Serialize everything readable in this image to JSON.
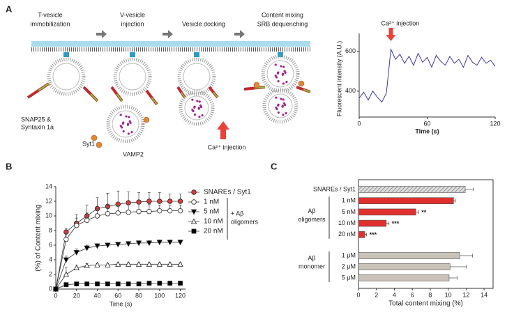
{
  "panels": [
    "A",
    "B",
    "C"
  ],
  "diagram": {
    "steps": [
      [
        "T-vesicle",
        "immobilization"
      ],
      [
        "V-vesicle",
        "injection"
      ],
      [
        "Vesicle docking"
      ],
      [
        "Content mixing",
        "SRB dequenching"
      ]
    ],
    "t_snare_label": [
      "SNAP25 &",
      "Syntaxin 1a"
    ],
    "syt_label": "Syt1",
    "vamp_label": "VAMP2",
    "ca_label": "Ca²⁺ injection"
  },
  "chart_data": [
    {
      "type": "line",
      "annotation": "Ca²⁺ injection",
      "xlabel": "Time (s)",
      "ylabel": "Fluorescent intensity (A.U.)",
      "x": [
        0,
        4,
        8,
        12,
        16,
        20,
        24,
        28,
        32,
        36,
        40,
        44,
        48,
        52,
        56,
        60,
        64,
        68,
        72,
        76,
        80,
        84,
        88,
        92,
        96,
        100,
        104,
        108,
        112,
        116,
        120
      ],
      "values": [
        365,
        395,
        355,
        400,
        370,
        345,
        390,
        610,
        560,
        585,
        540,
        575,
        530,
        590,
        545,
        570,
        520,
        580,
        550,
        530,
        575,
        540,
        560,
        520,
        580,
        545,
        530,
        570,
        540,
        555,
        525
      ],
      "color": "#3a3aa0",
      "annotation_x": 28,
      "xlim": [
        0,
        120
      ],
      "xticks": [
        0,
        60,
        120
      ],
      "ylim": [
        270,
        690
      ],
      "yticks": [
        400,
        600
      ]
    },
    {
      "type": "line_markers",
      "xlabel": "Time (s)",
      "ylabel": "(%) of Content mixing",
      "group_label": [
        "+ Aβ",
        "oligomers"
      ],
      "x": [
        0,
        10,
        20,
        30,
        40,
        50,
        60,
        70,
        80,
        90,
        100,
        110,
        120
      ],
      "series": [
        {
          "name": "SNAREs / Syt1",
          "marker": "circle",
          "color": "#e03a3a",
          "values": [
            0,
            7.8,
            9.0,
            10.0,
            11.0,
            11.3,
            11.6,
            11.8,
            11.9,
            12.0,
            12.0,
            12.0,
            12.0
          ],
          "errors": [
            0,
            0.5,
            1.2,
            1.5,
            1.5,
            1.8,
            1.8,
            1.5,
            1.3,
            1.2,
            1.2,
            1.0,
            1.0
          ]
        },
        {
          "name": "1 nM",
          "marker": "circle",
          "color": "#ffffff",
          "values": [
            0,
            6.8,
            8.7,
            9.4,
            10.0,
            10.3,
            10.4,
            10.5,
            10.6,
            10.6,
            10.7,
            10.7,
            10.7
          ],
          "errors": [
            0,
            0.8,
            1.0,
            1.0,
            1.0,
            1.2,
            1.0,
            1.0,
            1.0,
            1.0,
            0.8,
            0.8,
            0.8
          ]
        },
        {
          "name": "5 nM",
          "marker": "triangle-down",
          "color": "#000000",
          "values": [
            0,
            4.0,
            5.0,
            5.6,
            5.9,
            6.0,
            6.1,
            6.2,
            6.3,
            6.3,
            6.4,
            6.4,
            6.4
          ],
          "errors": [
            0,
            0.5,
            0.5,
            0.4,
            0.3,
            0.3,
            0.3,
            0.3,
            0.3,
            0.3,
            0.3,
            0.3,
            0.3
          ]
        },
        {
          "name": "10 nM",
          "marker": "triangle-up",
          "color": "#ffffff",
          "values": [
            0,
            2.0,
            2.9,
            3.2,
            3.3,
            3.3,
            3.4,
            3.4,
            3.4,
            3.4,
            3.4,
            3.4,
            3.4
          ],
          "errors": [
            0,
            1.0,
            0.4,
            0.3,
            0.2,
            0.2,
            0.2,
            0.2,
            0.2,
            0.2,
            0.2,
            0.2,
            0.2
          ]
        },
        {
          "name": "20 nM",
          "marker": "square",
          "color": "#000000",
          "values": [
            0,
            0.6,
            0.7,
            0.7,
            0.7,
            0.7,
            0.7,
            0.7,
            0.7,
            0.8,
            0.8,
            0.8,
            0.8
          ],
          "errors": [
            0,
            0.2,
            0.1,
            0.1,
            0.1,
            0.1,
            0.1,
            0.1,
            0.1,
            0.1,
            0.1,
            0.1,
            0.1
          ]
        }
      ],
      "xlim": [
        0,
        125
      ],
      "xticks": [
        0,
        20,
        40,
        60,
        80,
        100,
        120
      ],
      "ylim": [
        0,
        14
      ],
      "yticks": [
        0,
        2,
        4,
        6,
        8,
        10,
        12,
        14
      ]
    },
    {
      "type": "hbar",
      "xlabel": "Total content mixing (%)",
      "categories": [
        "SNAREs / Syt1",
        "1 nM",
        "5 nM",
        "10 nM",
        "20 nM",
        "1 μM",
        "2 μM",
        "5 μM"
      ],
      "values": [
        11.9,
        10.6,
        6.4,
        3.1,
        0.7,
        11.3,
        10.2,
        10.1
      ],
      "errors": [
        0.9,
        0.2,
        0.3,
        0.3,
        0.2,
        1.4,
        1.8,
        0.9
      ],
      "significance": [
        null,
        null,
        "**",
        "***",
        "***",
        null,
        null,
        null
      ],
      "colors": [
        "#bbbbbb",
        "#e0302e",
        "#e0302e",
        "#e0302e",
        "#e0302e",
        "#c9c2b8",
        "#c9c2b8",
        "#c9c2b8"
      ],
      "hatched": [
        true,
        false,
        false,
        false,
        false,
        false,
        false,
        false
      ],
      "groups": [
        {
          "label": [
            "Aβ",
            "oligomers"
          ]
        },
        {
          "label": [
            "Aβ",
            "monomer"
          ]
        }
      ],
      "xlim": [
        0,
        15
      ],
      "xticks": [
        0,
        2,
        4,
        6,
        8,
        10,
        12,
        14
      ]
    }
  ]
}
